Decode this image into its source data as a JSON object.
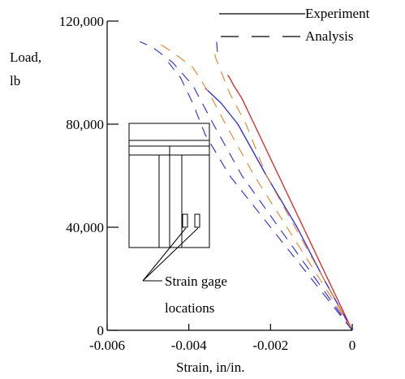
{
  "chart_data": {
    "type": "line",
    "title": "",
    "xlabel": "Strain,  in/in.",
    "ylabel_lines": [
      "Load,",
      "lb"
    ],
    "xlim": [
      -0.006,
      0
    ],
    "ylim": [
      0,
      120000
    ],
    "x_ticks": [
      {
        "value": -0.006,
        "label": "-0.006"
      },
      {
        "value": -0.004,
        "label": "-0.004"
      },
      {
        "value": -0.002,
        "label": "-0.002"
      },
      {
        "value": 0,
        "label": "0"
      }
    ],
    "y_ticks": [
      {
        "value": 0,
        "label": "0"
      },
      {
        "value": 40000,
        "label": "40,000"
      },
      {
        "value": 80000,
        "label": "80,000"
      },
      {
        "value": 120000,
        "label": "120,000"
      }
    ],
    "legend_placement": "top-right",
    "legend": [
      {
        "label": "Experiment",
        "style": "solid"
      },
      {
        "label": "Analysis",
        "style": "dashed"
      }
    ],
    "series": [
      {
        "kind": "experiment",
        "style": "solid",
        "color": "#d9231f",
        "points": [
          [
            0,
            0
          ],
          [
            -0.0006,
            20000
          ],
          [
            -0.0012,
            40000
          ],
          [
            -0.0018,
            60000
          ],
          [
            -0.0024,
            80000
          ],
          [
            -0.0027,
            90000
          ],
          [
            -0.0029,
            95000
          ],
          [
            -0.003,
            98000
          ],
          [
            -0.00305,
            99000
          ]
        ]
      },
      {
        "kind": "experiment",
        "style": "solid",
        "color": "#2a2ad6",
        "points": [
          [
            0,
            0
          ],
          [
            -0.0007,
            20000
          ],
          [
            -0.00135,
            40000
          ],
          [
            -0.0021,
            60000
          ],
          [
            -0.0028,
            80000
          ],
          [
            -0.0032,
            88000
          ],
          [
            -0.0034,
            91000
          ],
          [
            -0.0036,
            94000
          ]
        ]
      },
      {
        "kind": "analysis",
        "style": "dashed",
        "color": "#2a2ad6",
        "points": [
          [
            0,
            0
          ],
          [
            -0.0009,
            20000
          ],
          [
            -0.0018,
            40000
          ],
          [
            -0.0027,
            60000
          ],
          [
            -0.0034,
            80000
          ],
          [
            -0.0039,
            95000
          ],
          [
            -0.0044,
            104000
          ],
          [
            -0.0049,
            110000
          ],
          [
            -0.0052,
            112000
          ]
        ]
      },
      {
        "kind": "analysis",
        "style": "dashed",
        "color": "#e8822a",
        "points": [
          [
            0,
            0
          ],
          [
            -0.0008,
            20000
          ],
          [
            -0.0016,
            40000
          ],
          [
            -0.0024,
            60000
          ],
          [
            -0.0031,
            80000
          ],
          [
            -0.0035,
            92000
          ],
          [
            -0.0039,
            102000
          ],
          [
            -0.0044,
            108000
          ],
          [
            -0.0048,
            112000
          ]
        ]
      },
      {
        "kind": "analysis",
        "style": "dashed",
        "color": "#e8822a",
        "points": [
          [
            0,
            0
          ],
          [
            -0.0007,
            20000
          ],
          [
            -0.0014,
            40000
          ],
          [
            -0.0021,
            60000
          ],
          [
            -0.0026,
            80000
          ],
          [
            -0.003,
            92000
          ],
          [
            -0.0032,
            100000
          ],
          [
            -0.00335,
            106000
          ],
          [
            -0.0034,
            110000
          ]
        ]
      },
      {
        "kind": "analysis",
        "style": "dashed",
        "color": "#2a2ad6",
        "points": [
          [
            0,
            0
          ],
          [
            -0.001,
            20000
          ],
          [
            -0.002,
            40000
          ],
          [
            -0.003,
            60000
          ],
          [
            -0.0036,
            76000
          ],
          [
            -0.0039,
            88000
          ],
          [
            -0.0042,
            98000
          ],
          [
            -0.0045,
            104000
          ]
        ]
      },
      {
        "kind": "analysis",
        "style": "dashed",
        "color": "#2a2ad6",
        "points": [
          [
            -0.0033,
            108000
          ],
          [
            -0.00332,
            112000
          ]
        ]
      }
    ],
    "callout": {
      "lines": [
        "Strain gage",
        "locations"
      ]
    }
  }
}
